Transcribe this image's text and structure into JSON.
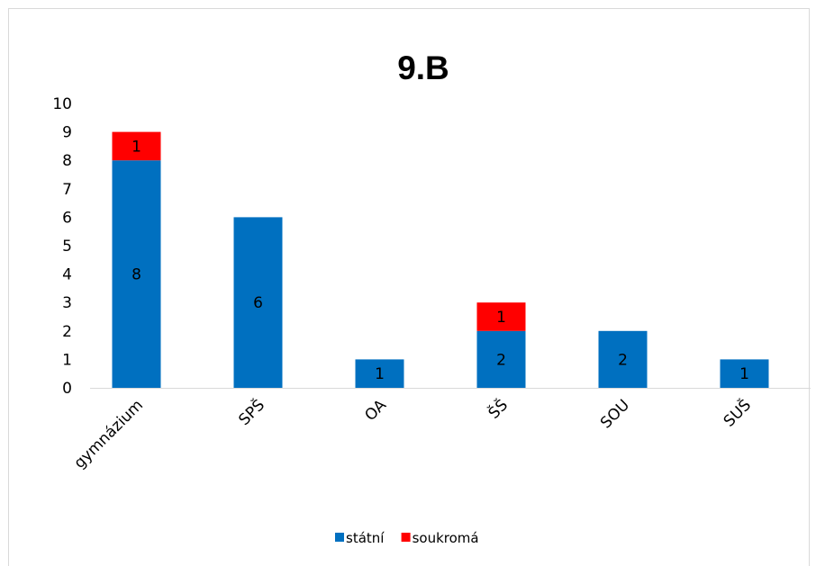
{
  "chart_data": {
    "type": "bar",
    "stacked": true,
    "title": "9.B",
    "categories": [
      "gymnázium",
      "SPŠ",
      "OA",
      "ŠŠ",
      "SOU",
      "SUŠ"
    ],
    "series": [
      {
        "name": "státní",
        "color": "#0070c0",
        "values": [
          8,
          6,
          1,
          2,
          2,
          1
        ]
      },
      {
        "name": "soukromá",
        "color": "#ff0000",
        "values": [
          1,
          0,
          0,
          1,
          0,
          0
        ]
      }
    ],
    "ylim": [
      0,
      10
    ],
    "yticks": [
      "0",
      "1",
      "2",
      "3",
      "4",
      "5",
      "6",
      "7",
      "8",
      "9",
      "10"
    ],
    "grid": false,
    "data_labels": true,
    "legend": "bottom",
    "xlabel": "",
    "ylabel": ""
  }
}
